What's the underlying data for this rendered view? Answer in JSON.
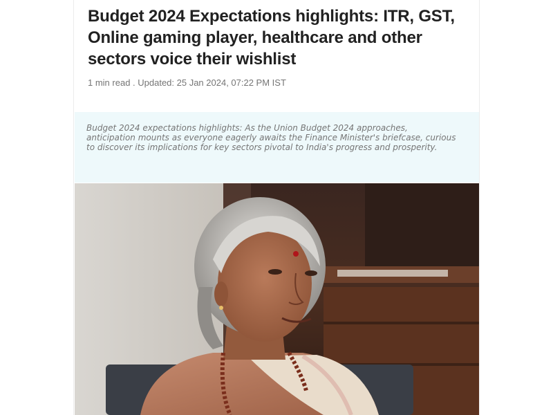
{
  "article": {
    "headline": "Budget 2024 Expectations highlights: ITR, GST, Online gaming player, healthcare and other sectors voice their wishlist",
    "meta": "1 min read . Updated: 25 Jan 2024, 07:22 PM IST",
    "summary": "Budget 2024 expectations highlights: As the Union Budget 2024 approaches, anticipation mounts as everyone eagerly awaits the Finance Minister's briefcase, curious to discover its implications for key sectors pivotal to India's progress and prosperity."
  },
  "colors": {
    "headline": "#212121",
    "meta": "#757575",
    "summary_bg": "#eef9fb",
    "summary_text": "#757575"
  }
}
